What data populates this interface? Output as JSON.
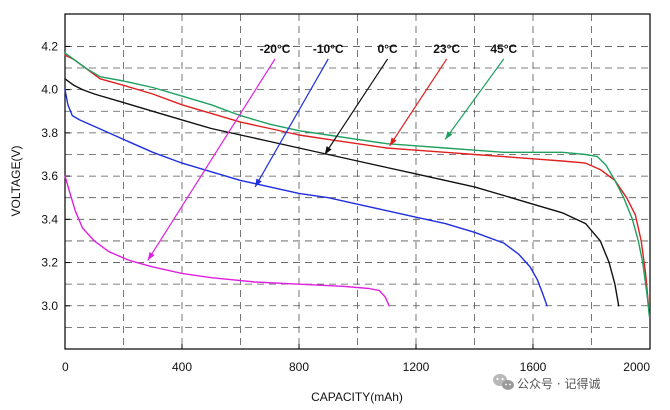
{
  "chart_data": {
    "type": "line",
    "xlabel": "CAPACITY(mAh)",
    "ylabel": "VOLTAGE(V)",
    "xlim": [
      0,
      2000
    ],
    "ylim": [
      2.8,
      4.35
    ],
    "x_ticks": [
      "0",
      "400",
      "800",
      "1200",
      "1600",
      "2000"
    ],
    "y_ticks": [
      "3.0",
      "3.2",
      "3.4",
      "3.6",
      "3.8",
      "4.0",
      "4.2"
    ],
    "grid": "dashed",
    "series": [
      {
        "name": "-20°C",
        "color": "#e020e0",
        "points": [
          [
            0,
            3.6
          ],
          [
            15,
            3.53
          ],
          [
            35,
            3.44
          ],
          [
            60,
            3.36
          ],
          [
            100,
            3.3
          ],
          [
            150,
            3.25
          ],
          [
            220,
            3.21
          ],
          [
            300,
            3.18
          ],
          [
            400,
            3.15
          ],
          [
            500,
            3.13
          ],
          [
            650,
            3.11
          ],
          [
            800,
            3.1
          ],
          [
            950,
            3.09
          ],
          [
            1040,
            3.08
          ],
          [
            1075,
            3.07
          ],
          [
            1095,
            3.04
          ],
          [
            1108,
            3.0
          ]
        ]
      },
      {
        "name": "-10°C",
        "color": "#1f2fe0",
        "points": [
          [
            0,
            4.0
          ],
          [
            10,
            3.93
          ],
          [
            25,
            3.88
          ],
          [
            50,
            3.86
          ],
          [
            100,
            3.83
          ],
          [
            200,
            3.77
          ],
          [
            300,
            3.71
          ],
          [
            400,
            3.66
          ],
          [
            500,
            3.62
          ],
          [
            600,
            3.58
          ],
          [
            700,
            3.55
          ],
          [
            800,
            3.52
          ],
          [
            900,
            3.5
          ],
          [
            1000,
            3.47
          ],
          [
            1100,
            3.44
          ],
          [
            1200,
            3.41
          ],
          [
            1300,
            3.38
          ],
          [
            1400,
            3.34
          ],
          [
            1500,
            3.29
          ],
          [
            1550,
            3.24
          ],
          [
            1590,
            3.18
          ],
          [
            1615,
            3.12
          ],
          [
            1635,
            3.05
          ],
          [
            1648,
            3.0
          ]
        ]
      },
      {
        "name": "0°C",
        "color": "#111111",
        "points": [
          [
            0,
            4.05
          ],
          [
            30,
            4.02
          ],
          [
            60,
            4.0
          ],
          [
            100,
            3.98
          ],
          [
            200,
            3.94
          ],
          [
            300,
            3.9
          ],
          [
            400,
            3.86
          ],
          [
            500,
            3.82
          ],
          [
            600,
            3.79
          ],
          [
            700,
            3.76
          ],
          [
            800,
            3.73
          ],
          [
            900,
            3.7
          ],
          [
            1000,
            3.67
          ],
          [
            1100,
            3.64
          ],
          [
            1200,
            3.61
          ],
          [
            1300,
            3.58
          ],
          [
            1400,
            3.55
          ],
          [
            1500,
            3.51
          ],
          [
            1600,
            3.47
          ],
          [
            1700,
            3.43
          ],
          [
            1780,
            3.38
          ],
          [
            1830,
            3.3
          ],
          [
            1860,
            3.2
          ],
          [
            1880,
            3.1
          ],
          [
            1893,
            3.0
          ]
        ]
      },
      {
        "name": "23°C",
        "color": "#e02020",
        "points": [
          [
            0,
            4.16
          ],
          [
            30,
            4.14
          ],
          [
            70,
            4.1
          ],
          [
            120,
            4.05
          ],
          [
            200,
            4.02
          ],
          [
            300,
            3.98
          ],
          [
            400,
            3.93
          ],
          [
            500,
            3.89
          ],
          [
            600,
            3.85
          ],
          [
            700,
            3.82
          ],
          [
            800,
            3.79
          ],
          [
            900,
            3.77
          ],
          [
            1000,
            3.75
          ],
          [
            1100,
            3.73
          ],
          [
            1200,
            3.72
          ],
          [
            1300,
            3.71
          ],
          [
            1400,
            3.7
          ],
          [
            1500,
            3.69
          ],
          [
            1600,
            3.68
          ],
          [
            1700,
            3.67
          ],
          [
            1780,
            3.66
          ],
          [
            1830,
            3.63
          ],
          [
            1880,
            3.58
          ],
          [
            1920,
            3.5
          ],
          [
            1950,
            3.42
          ],
          [
            1970,
            3.3
          ],
          [
            1985,
            3.15
          ],
          [
            1995,
            3.0
          ]
        ]
      },
      {
        "name": "45°C",
        "color": "#20a060",
        "points": [
          [
            0,
            4.17
          ],
          [
            30,
            4.14
          ],
          [
            70,
            4.1
          ],
          [
            120,
            4.06
          ],
          [
            200,
            4.04
          ],
          [
            300,
            4.01
          ],
          [
            400,
            3.97
          ],
          [
            500,
            3.93
          ],
          [
            600,
            3.88
          ],
          [
            700,
            3.84
          ],
          [
            800,
            3.81
          ],
          [
            900,
            3.79
          ],
          [
            1000,
            3.77
          ],
          [
            1100,
            3.75
          ],
          [
            1200,
            3.74
          ],
          [
            1300,
            3.73
          ],
          [
            1400,
            3.72
          ],
          [
            1500,
            3.71
          ],
          [
            1600,
            3.71
          ],
          [
            1700,
            3.71
          ],
          [
            1780,
            3.7
          ],
          [
            1820,
            3.69
          ],
          [
            1850,
            3.65
          ],
          [
            1880,
            3.58
          ],
          [
            1910,
            3.5
          ],
          [
            1940,
            3.4
          ],
          [
            1960,
            3.3
          ],
          [
            1975,
            3.2
          ],
          [
            1990,
            3.05
          ],
          [
            1998,
            2.95
          ]
        ]
      }
    ],
    "annotations": [
      {
        "text": "-20°C",
        "series": 0,
        "label": [
          718,
          4.17
        ],
        "arrow_to": [
          283,
          3.21
        ]
      },
      {
        "text": "-10°C",
        "series": 1,
        "label": [
          900,
          4.17
        ],
        "arrow_to": [
          650,
          3.55
        ]
      },
      {
        "text": "0°C",
        "series": 2,
        "label": [
          1103,
          4.17
        ],
        "arrow_to": [
          888,
          3.7
        ]
      },
      {
        "text": "23°C",
        "series": 3,
        "label": [
          1305,
          4.17
        ],
        "arrow_to": [
          1110,
          3.74
        ]
      },
      {
        "text": "45°C",
        "series": 4,
        "label": [
          1500,
          4.17
        ],
        "arrow_to": [
          1300,
          3.77
        ]
      }
    ]
  },
  "watermark": {
    "text": "公众号 · 记得诚",
    "icon": "wechat-icon"
  }
}
